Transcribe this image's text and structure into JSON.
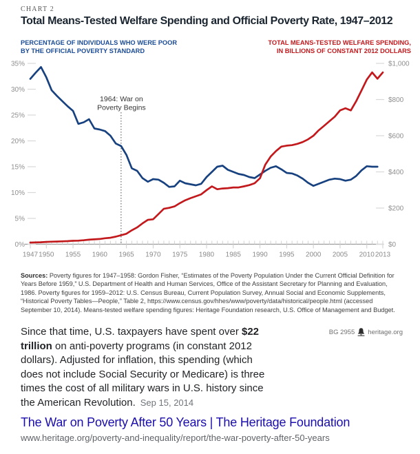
{
  "page": {
    "kicker": "CHART 2",
    "title": "Total Means-Tested Welfare Spending and Official Poverty Rate, 1947–2012"
  },
  "chart_data": {
    "type": "line",
    "title": "Total Means-Tested Welfare Spending and Official Poverty Rate, 1947–2012",
    "grid": false,
    "legend_position": "none",
    "x_axis": {
      "range": [
        1947,
        2013
      ],
      "tick_labels": [
        "1947",
        "1950",
        "1955",
        "1960",
        "1965",
        "1970",
        "1975",
        "1980",
        "1985",
        "1990",
        "1995",
        "2000",
        "2005",
        "2010",
        "2013"
      ],
      "tick_values": [
        1947,
        1950,
        1955,
        1960,
        1965,
        1970,
        1975,
        1980,
        1985,
        1990,
        1995,
        2000,
        2005,
        2010,
        2013
      ]
    },
    "left_axis": {
      "label_lines": [
        "PERCENTAGE OF INDIVIDUALS WHO WERE POOR",
        "BY THE OFFICIAL POVERTY STANDARD"
      ],
      "range": [
        0,
        35
      ],
      "tick_values": [
        0,
        5,
        10,
        15,
        20,
        25,
        30,
        35
      ],
      "tick_labels": [
        "0%",
        "5%",
        "10%",
        "15%",
        "20%",
        "25%",
        "30%",
        "35%"
      ]
    },
    "right_axis": {
      "label_lines": [
        "TOTAL MEANS-TESTED WELFARE SPENDING,",
        "IN BILLIONS OF CONSTANT 2012 DOLLARS"
      ],
      "range": [
        0,
        1000
      ],
      "tick_values": [
        0,
        200,
        400,
        600,
        800,
        1000
      ],
      "tick_labels": [
        "$0",
        "$200",
        "$400",
        "$600",
        "$800",
        "$1,000"
      ]
    },
    "annotation": {
      "year": 1964,
      "lines": [
        "1964: War on",
        "Poverty Begins"
      ]
    },
    "series": [
      {
        "name": "official_poverty_rate_pct",
        "axis": "left",
        "color": "#17417f",
        "start_year": 1947,
        "values": [
          32.0,
          33.2,
          34.3,
          32.3,
          29.8,
          28.7,
          27.7,
          26.7,
          25.8,
          23.3,
          23.6,
          24.2,
          22.4,
          22.2,
          21.9,
          21.0,
          19.5,
          19.0,
          17.3,
          14.7,
          14.2,
          12.8,
          12.1,
          12.6,
          12.5,
          11.9,
          11.1,
          11.2,
          12.3,
          11.8,
          11.6,
          11.4,
          11.7,
          13.0,
          14.0,
          15.0,
          15.2,
          14.4,
          14.0,
          13.6,
          13.4,
          13.0,
          12.8,
          13.5,
          14.2,
          14.8,
          15.1,
          14.5,
          13.8,
          13.7,
          13.3,
          12.7,
          11.9,
          11.3,
          11.7,
          12.1,
          12.5,
          12.7,
          12.6,
          12.3,
          12.5,
          13.2,
          14.3,
          15.1,
          15.0,
          15.0
        ]
      },
      {
        "name": "means_tested_welfare_spending_billions_2012usd",
        "axis": "right",
        "color": "#c2191d",
        "start_year": 1947,
        "values": [
          9,
          10,
          11,
          13,
          14,
          15,
          16,
          17,
          19,
          20,
          22,
          25,
          27,
          29,
          33,
          36,
          42,
          50,
          58,
          77,
          93,
          115,
          135,
          138,
          167,
          196,
          201,
          209,
          227,
          243,
          255,
          265,
          276,
          299,
          320,
          304,
          308,
          310,
          314,
          314,
          320,
          327,
          337,
          365,
          440,
          485,
          515,
          540,
          545,
          548,
          555,
          565,
          580,
          600,
          630,
          655,
          680,
          705,
          740,
          752,
          740,
          790,
          850,
          910,
          950,
          915,
          950
        ]
      }
    ]
  },
  "sources": {
    "label": "Sources:",
    "lines": [
      "Poverty figures for 1947–1958: Gordon Fisher, “Estimates of the Poverty Population Under the Current Official Definition for",
      "Years Before 1959,” U.S. Department of Health and Human Services, Office of the Assistant Secretary for Planning and Evaluation,",
      "1986. Poverty figures for 1959–2012: U.S. Census Bureau, Current Population Survey, Annual Social and Economic Supplements,",
      "“Historical Poverty Tables—People,” Table 2, https://www.census.gov/hhes/www/poverty/data/historical/people.html (accessed",
      "September 10, 2014). Means-tested welfare spending figures: Heritage Foundation research, U.S. Office of Management and Budget."
    ]
  },
  "meta": {
    "doc_id": "BG 2955",
    "site": "heritage.org"
  },
  "snippet": {
    "lines": [
      [
        [
          "Since that time, U.S. taxpayers have spent over ",
          0
        ],
        [
          "$22",
          1
        ]
      ],
      [
        [
          "trillion",
          1
        ],
        [
          " on anti-poverty programs (in constant 2012",
          0
        ]
      ],
      [
        [
          "dollars). Adjusted for inflation, this spending (which",
          0
        ]
      ],
      [
        [
          "does not include Social Security or Medicare) is three",
          0
        ]
      ],
      [
        [
          "times the cost of all military wars in U.S. history since",
          0
        ]
      ],
      [
        [
          "the American Revolution.",
          0
        ]
      ]
    ],
    "date": "Sep 15, 2014"
  },
  "result": {
    "title": "The War on Poverty After 50 Years | The Heritage Foundation",
    "url": "www.heritage.org/poverty-and-inequality/report/the-war-poverty-after-50-years"
  },
  "colors": {
    "line_blue": "#17417f",
    "line_red": "#c2191d",
    "header_blue": "#1a4b96",
    "header_red": "#c2191d",
    "link_blue": "#1a0dab",
    "axis_text": "#8f8f8f"
  }
}
